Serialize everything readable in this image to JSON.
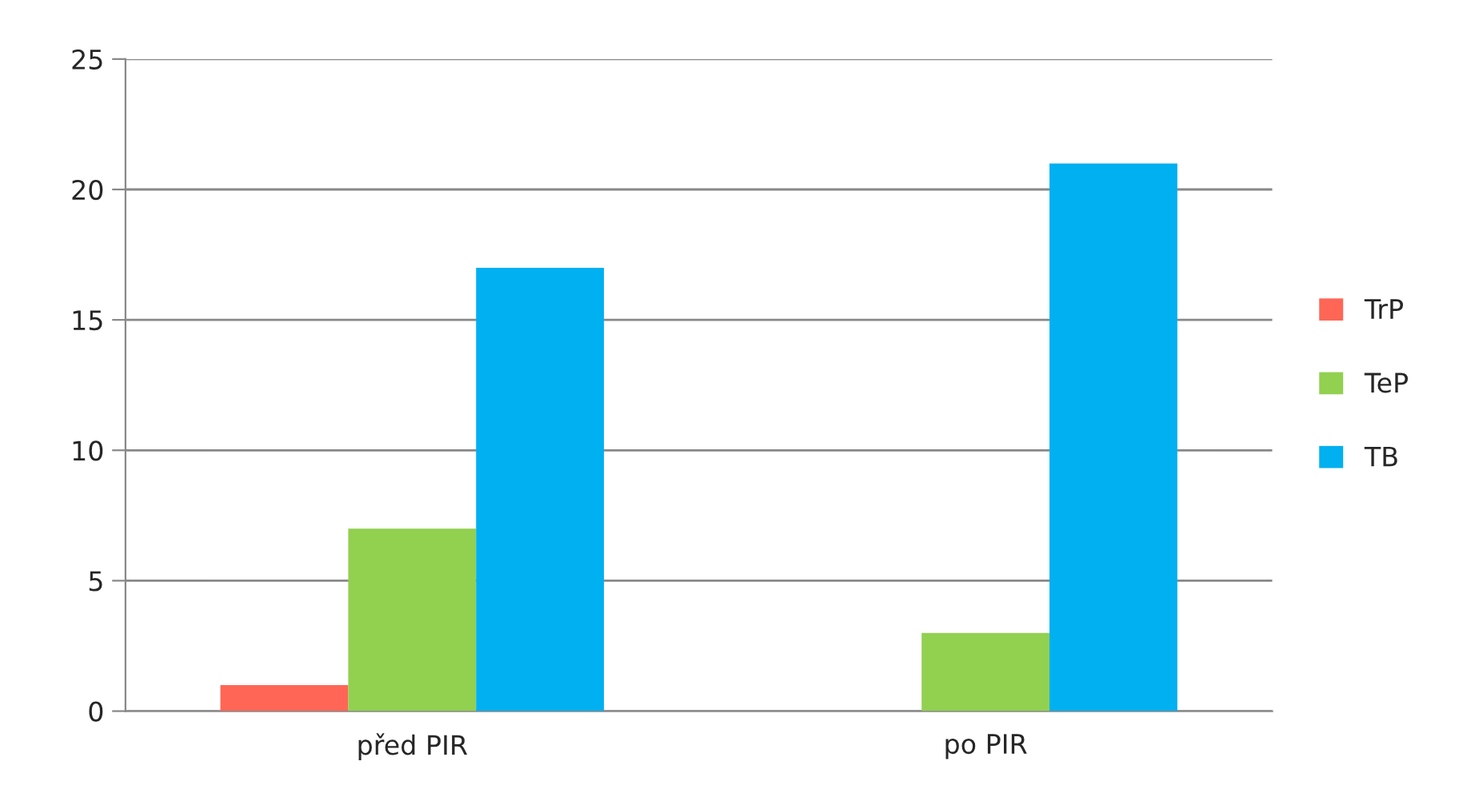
{
  "chart_data": {
    "type": "bar",
    "categories": [
      "před PIR",
      "po PIR"
    ],
    "series": [
      {
        "name": "TrP",
        "color": "#ff6655",
        "values": [
          1,
          0
        ]
      },
      {
        "name": "TeP",
        "color": "#92d050",
        "values": [
          7,
          3
        ]
      },
      {
        "name": "TB",
        "color": "#00b0f0",
        "values": [
          17,
          21
        ]
      }
    ],
    "ylim": [
      0,
      25
    ],
    "yticks": [
      0,
      5,
      10,
      15,
      20,
      25
    ],
    "grid": "y",
    "legend": "right"
  }
}
